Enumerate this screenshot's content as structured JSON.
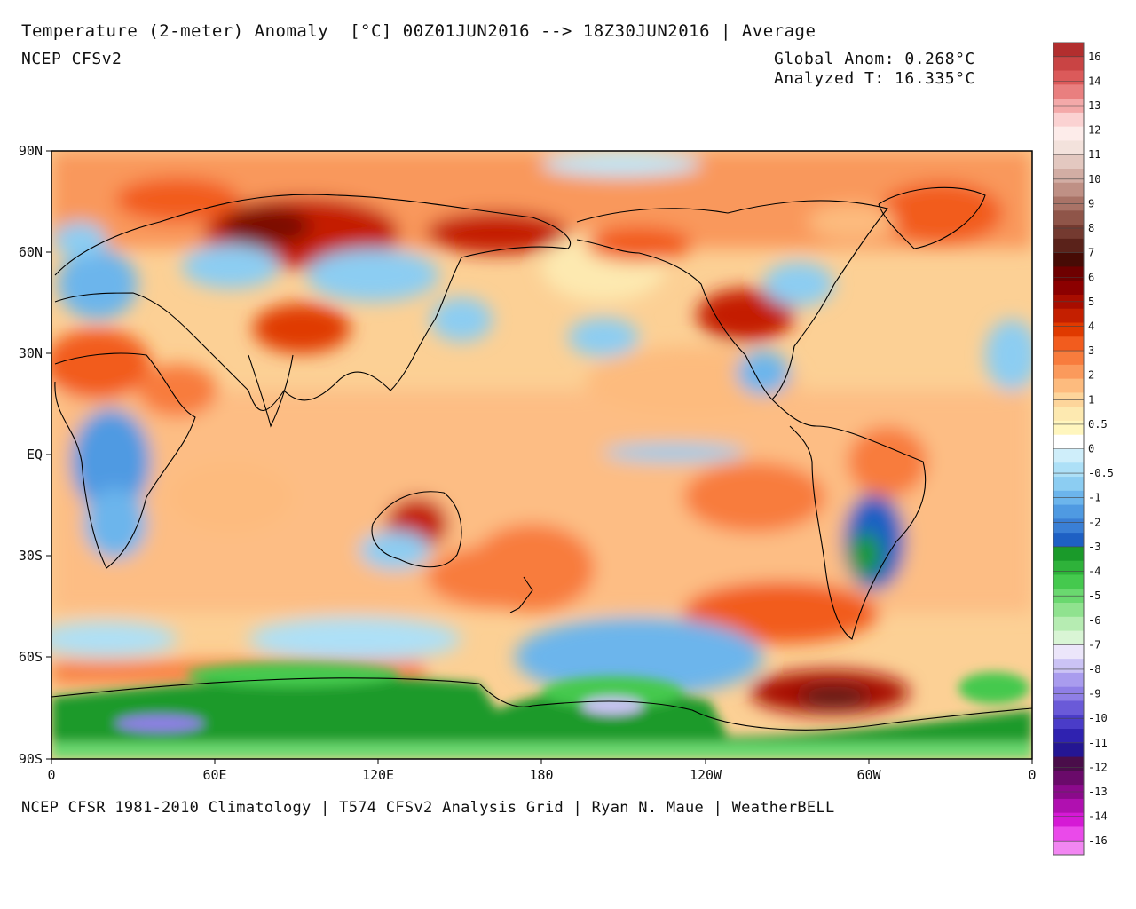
{
  "header": {
    "title": "Temperature (2-meter) Anomaly  [°C] 00Z01JUN2016 --> 18Z30JUN2016 | Average",
    "model": "NCEP CFSv2",
    "global_anom": "Global Anom: 0.268°C",
    "analyzed_t": "Analyzed T: 16.335°C"
  },
  "footer": {
    "credit": "NCEP CFSR 1981-2010 Climatology | T574 CFSv2 Analysis Grid | Ryan N. Maue | WeatherBELL"
  },
  "axes": {
    "lat_labels": [
      "90N",
      "60N",
      "30N",
      "EQ",
      "30S",
      "60S",
      "90S"
    ],
    "lon_labels": [
      "0",
      "60E",
      "120E",
      "180",
      "120W",
      "60W",
      "0"
    ]
  },
  "colorbar": {
    "labels": [
      "16",
      "14",
      "13",
      "12",
      "11",
      "10",
      "9",
      "8",
      "7",
      "6",
      "5",
      "4",
      "3",
      "2",
      "1",
      "0.5",
      "0",
      "-0.5",
      "-1",
      "-2",
      "-3",
      "-4",
      "-5",
      "-6",
      "-7",
      "-8",
      "-9",
      "-10",
      "-11",
      "-12",
      "-13",
      "-14",
      "-16"
    ],
    "colors": [
      "#b22e2e",
      "#c94444",
      "#db5a5a",
      "#e97f7f",
      "#f4a9a9",
      "#fbd2d2",
      "#fdecea",
      "#f3e2dc",
      "#e3c8c0",
      "#d2ada4",
      "#bf9085",
      "#a97367",
      "#8f5549",
      "#743a30",
      "#5a221a",
      "#470b05",
      "#6e0000",
      "#8c0000",
      "#a80d00",
      "#c41f00",
      "#e03a00",
      "#f25c1e",
      "#f87c3d",
      "#fb9a5c",
      "#fdbb7e",
      "#fdd59b",
      "#fde9b0",
      "#fff6be",
      "#ffffff",
      "#cfeefa",
      "#ade0f7",
      "#8ccdf2",
      "#6cb5ec",
      "#4f9ae2",
      "#3a7fd5",
      "#1e60c4",
      "#1a9a2a",
      "#2eb23a",
      "#45c94e",
      "#6ad86f",
      "#90e28f",
      "#b6ecb2",
      "#d9f5d5",
      "#ece6fa",
      "#cbc3f5",
      "#a99cee",
      "#8f7fe6",
      "#6a5ad8",
      "#4a3cc8",
      "#2f22b0",
      "#241693",
      "#4a0d4a",
      "#6a0a6a",
      "#8b0a8b",
      "#b010b0",
      "#d51ad5",
      "#ea4aea",
      "#f286f2"
    ]
  }
}
